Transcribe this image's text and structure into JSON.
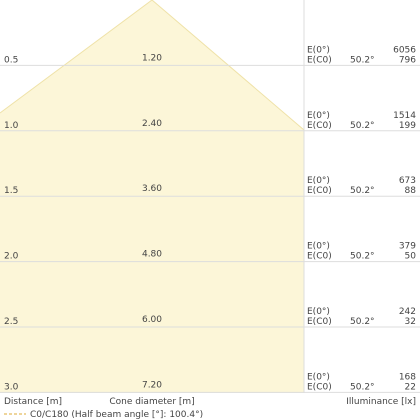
{
  "rows": [
    {
      "distance": "0.5",
      "diameter": "1.20",
      "e0_label": "E(0°)",
      "ec0_label": "E(C0)",
      "angle": "50.2°",
      "e0": "6056",
      "ec0": "796"
    },
    {
      "distance": "1.0",
      "diameter": "2.40",
      "e0_label": "E(0°)",
      "ec0_label": "E(C0)",
      "angle": "50.2°",
      "e0": "1514",
      "ec0": "199"
    },
    {
      "distance": "1.5",
      "diameter": "3.60",
      "e0_label": "E(0°)",
      "ec0_label": "E(C0)",
      "angle": "50.2°",
      "e0": "673",
      "ec0": "88"
    },
    {
      "distance": "2.0",
      "diameter": "4.80",
      "e0_label": "E(0°)",
      "ec0_label": "E(C0)",
      "angle": "50.2°",
      "e0": "379",
      "ec0": "50"
    },
    {
      "distance": "2.5",
      "diameter": "6.00",
      "e0_label": "E(0°)",
      "ec0_label": "E(C0)",
      "angle": "50.2°",
      "e0": "242",
      "ec0": "32"
    },
    {
      "distance": "3.0",
      "diameter": "7.20",
      "e0_label": "E(0°)",
      "ec0_label": "E(C0)",
      "angle": "50.2°",
      "e0": "168",
      "ec0": "22"
    }
  ],
  "footer": {
    "distance": "Distance [m]",
    "diameter": "Cone diameter [m]",
    "illuminance": "Illuminance [lx]"
  },
  "legend": "C0/C180 (Half beam angle [°]: 100.4°)"
}
